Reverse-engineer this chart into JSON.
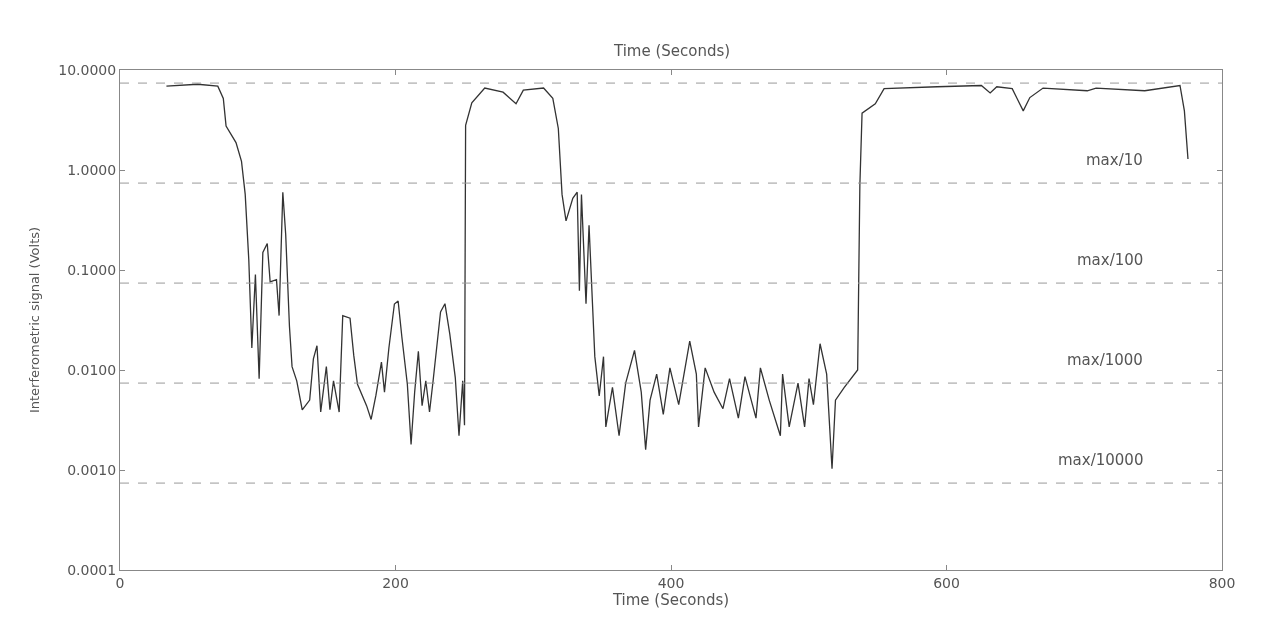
{
  "chart_data": {
    "type": "line",
    "xlabel": "Time (Seconds)",
    "x2label": "Time (Seconds)",
    "ylabel": "Interferometric signal (Volts)",
    "x": [
      33.7,
      56.4,
      71,
      75,
      77,
      84.2,
      88.2,
      90.9,
      93.5,
      95.7,
      98.3,
      101,
      103.7,
      106.9,
      109,
      113.6,
      115.5,
      118.2,
      120.3,
      123,
      124.9,
      128.3,
      132.3,
      137.7,
      140.4,
      143,
      145.7,
      149.8,
      152.4,
      155,
      159.1,
      161.7,
      167,
      169.7,
      172.4,
      179,
      182.3,
      185.8,
      189.8,
      192,
      195.2,
      199.2,
      201.9,
      204.6,
      208.6,
      211.3,
      213.9,
      216.6,
      219.3,
      222,
      224.7,
      227.3,
      232.7,
      235.9,
      239.4,
      243.4,
      246.1,
      248.8,
      250.1,
      250.9,
      255.4,
      264.8,
      278.1,
      287.5,
      292.8,
      307.5,
      314.2,
      318.2,
      320.9,
      323.8,
      328.7,
      331.9,
      333.5,
      335,
      338.3,
      340.5,
      343,
      344.7,
      347.9,
      351,
      352.7,
      357.5,
      362.3,
      367.1,
      373.5,
      378.4,
      381.6,
      384.8,
      389.6,
      394.4,
      399.2,
      405.6,
      413.6,
      418.4,
      420,
      424.8,
      431.3,
      437.7,
      442.5,
      448.9,
      453.7,
      461.7,
      464.9,
      471.3,
      479.4,
      481,
      485.8,
      492.2,
      497,
      500.2,
      503.4,
      508.2,
      513,
      516.9,
      519.4,
      525.8,
      535.5,
      537.1,
      538.7,
      548.3,
      554.7,
      593.2,
      625.3,
      631.7,
      636.5,
      647.7,
      655.7,
      660.5,
      670.1,
      702.2,
      708.6,
      743.9,
      769.5,
      772.7,
      775.3
    ],
    "values": [
      6.9,
      7.2,
      6.9,
      5.2,
      2.75,
      1.88,
      1.22,
      0.57,
      0.126,
      0.0166,
      0.09,
      0.0082,
      0.15,
      0.184,
      0.076,
      0.08,
      0.035,
      0.6,
      0.225,
      0.0275,
      0.0108,
      0.0078,
      0.004,
      0.005,
      0.0129,
      0.0175,
      0.0038,
      0.0108,
      0.004,
      0.0078,
      0.0038,
      0.035,
      0.033,
      0.014,
      0.0072,
      0.0044,
      0.0032,
      0.0056,
      0.012,
      0.006,
      0.0166,
      0.0457,
      0.049,
      0.0215,
      0.0072,
      0.0018,
      0.006,
      0.0154,
      0.0044,
      0.0078,
      0.0038,
      0.0078,
      0.038,
      0.046,
      0.023,
      0.0084,
      0.0022,
      0.0078,
      0.0028,
      2.8,
      4.7,
      6.6,
      6.0,
      4.6,
      6.3,
      6.6,
      5.2,
      2.6,
      0.57,
      0.31,
      0.52,
      0.6,
      0.062,
      0.57,
      0.046,
      0.28,
      0.046,
      0.0136,
      0.0055,
      0.0136,
      0.0027,
      0.0067,
      0.0022,
      0.0074,
      0.0157,
      0.006,
      0.0016,
      0.005,
      0.0091,
      0.0036,
      0.0105,
      0.0045,
      0.0194,
      0.0091,
      0.0027,
      0.0105,
      0.006,
      0.0041,
      0.0082,
      0.0033,
      0.0086,
      0.0033,
      0.0105,
      0.005,
      0.0022,
      0.0091,
      0.0027,
      0.0074,
      0.0027,
      0.0082,
      0.0045,
      0.0183,
      0.0091,
      0.00103,
      0.005,
      0.0067,
      0.01,
      0.7,
      3.7,
      4.6,
      6.5,
      6.8,
      7.0,
      5.9,
      6.8,
      6.5,
      3.9,
      5.3,
      6.6,
      6.2,
      6.6,
      6.2,
      7.0,
      3.9,
      1.29
    ],
    "color": "#333333",
    "line_style": "solid",
    "marker": "none",
    "log": "y",
    "xlim": [
      0,
      800
    ],
    "xticks": [
      0,
      200,
      400,
      600,
      800
    ],
    "ylim": [
      0.0001,
      10
    ],
    "yticks": [
      {
        "value": 0.0001,
        "label": "0.0001"
      },
      {
        "value": 0.001,
        "label": "0.0010"
      },
      {
        "value": 0.01,
        "label": "0.0100"
      },
      {
        "value": 0.1,
        "label": "0.1000"
      },
      {
        "value": 1,
        "label": "1.0000"
      },
      {
        "value": 10,
        "label": "10.0000"
      }
    ],
    "ref_lines": [
      {
        "axis": "y",
        "value": 7.4,
        "label": null,
        "color": "#999999",
        "line_style": "dashed"
      },
      {
        "axis": "y",
        "value": 0.74,
        "label": "max/10",
        "color": "#999999",
        "line_style": "dashed"
      },
      {
        "axis": "y",
        "value": 0.074,
        "label": "max/100",
        "color": "#999999",
        "line_style": "dashed"
      },
      {
        "axis": "y",
        "value": 0.0074,
        "label": "max/1000",
        "color": "#999999",
        "line_style": "dashed"
      },
      {
        "axis": "y",
        "value": 0.00074,
        "label": "max/10000",
        "color": "#999999",
        "line_style": "dashed"
      }
    ]
  }
}
